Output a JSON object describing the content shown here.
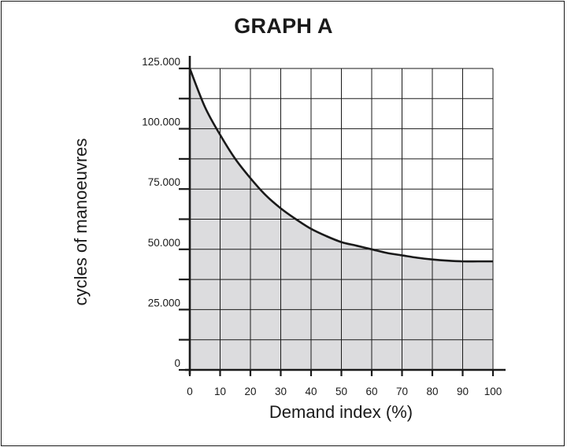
{
  "chart_data": {
    "type": "area",
    "title": "GRAPH A",
    "xlabel": "Demand index (%)",
    "ylabel": "cycles of manoeuvres",
    "xlim": [
      0,
      100
    ],
    "ylim": [
      0,
      125000
    ],
    "xticks": [
      0,
      10,
      20,
      30,
      40,
      50,
      60,
      70,
      80,
      90,
      100
    ],
    "xtick_labels": [
      "0",
      "10",
      "20",
      "30",
      "40",
      "50",
      "60",
      "70",
      "80",
      "90",
      "100"
    ],
    "yticks": [
      0,
      25000,
      50000,
      75000,
      100000,
      125000
    ],
    "ytick_labels": [
      "0",
      "25.000",
      "50.000",
      "75.000",
      "100.000",
      "125.000"
    ],
    "grid": true,
    "series": [
      {
        "x": [
          0,
          5,
          10,
          15,
          20,
          25,
          30,
          35,
          40,
          45,
          50,
          55,
          60,
          65,
          70,
          75,
          80,
          85,
          90,
          95,
          100
        ],
        "y": [
          125000,
          109000,
          97500,
          87500,
          79500,
          72500,
          67000,
          62500,
          58500,
          55500,
          53000,
          51500,
          50000,
          48500,
          47500,
          46500,
          45800,
          45300,
          45000,
          45000,
          45000
        ]
      }
    ],
    "colors": {
      "fill": "#dcdcde",
      "line": "#1a1a1a",
      "grid": "#1a1a1a"
    }
  }
}
